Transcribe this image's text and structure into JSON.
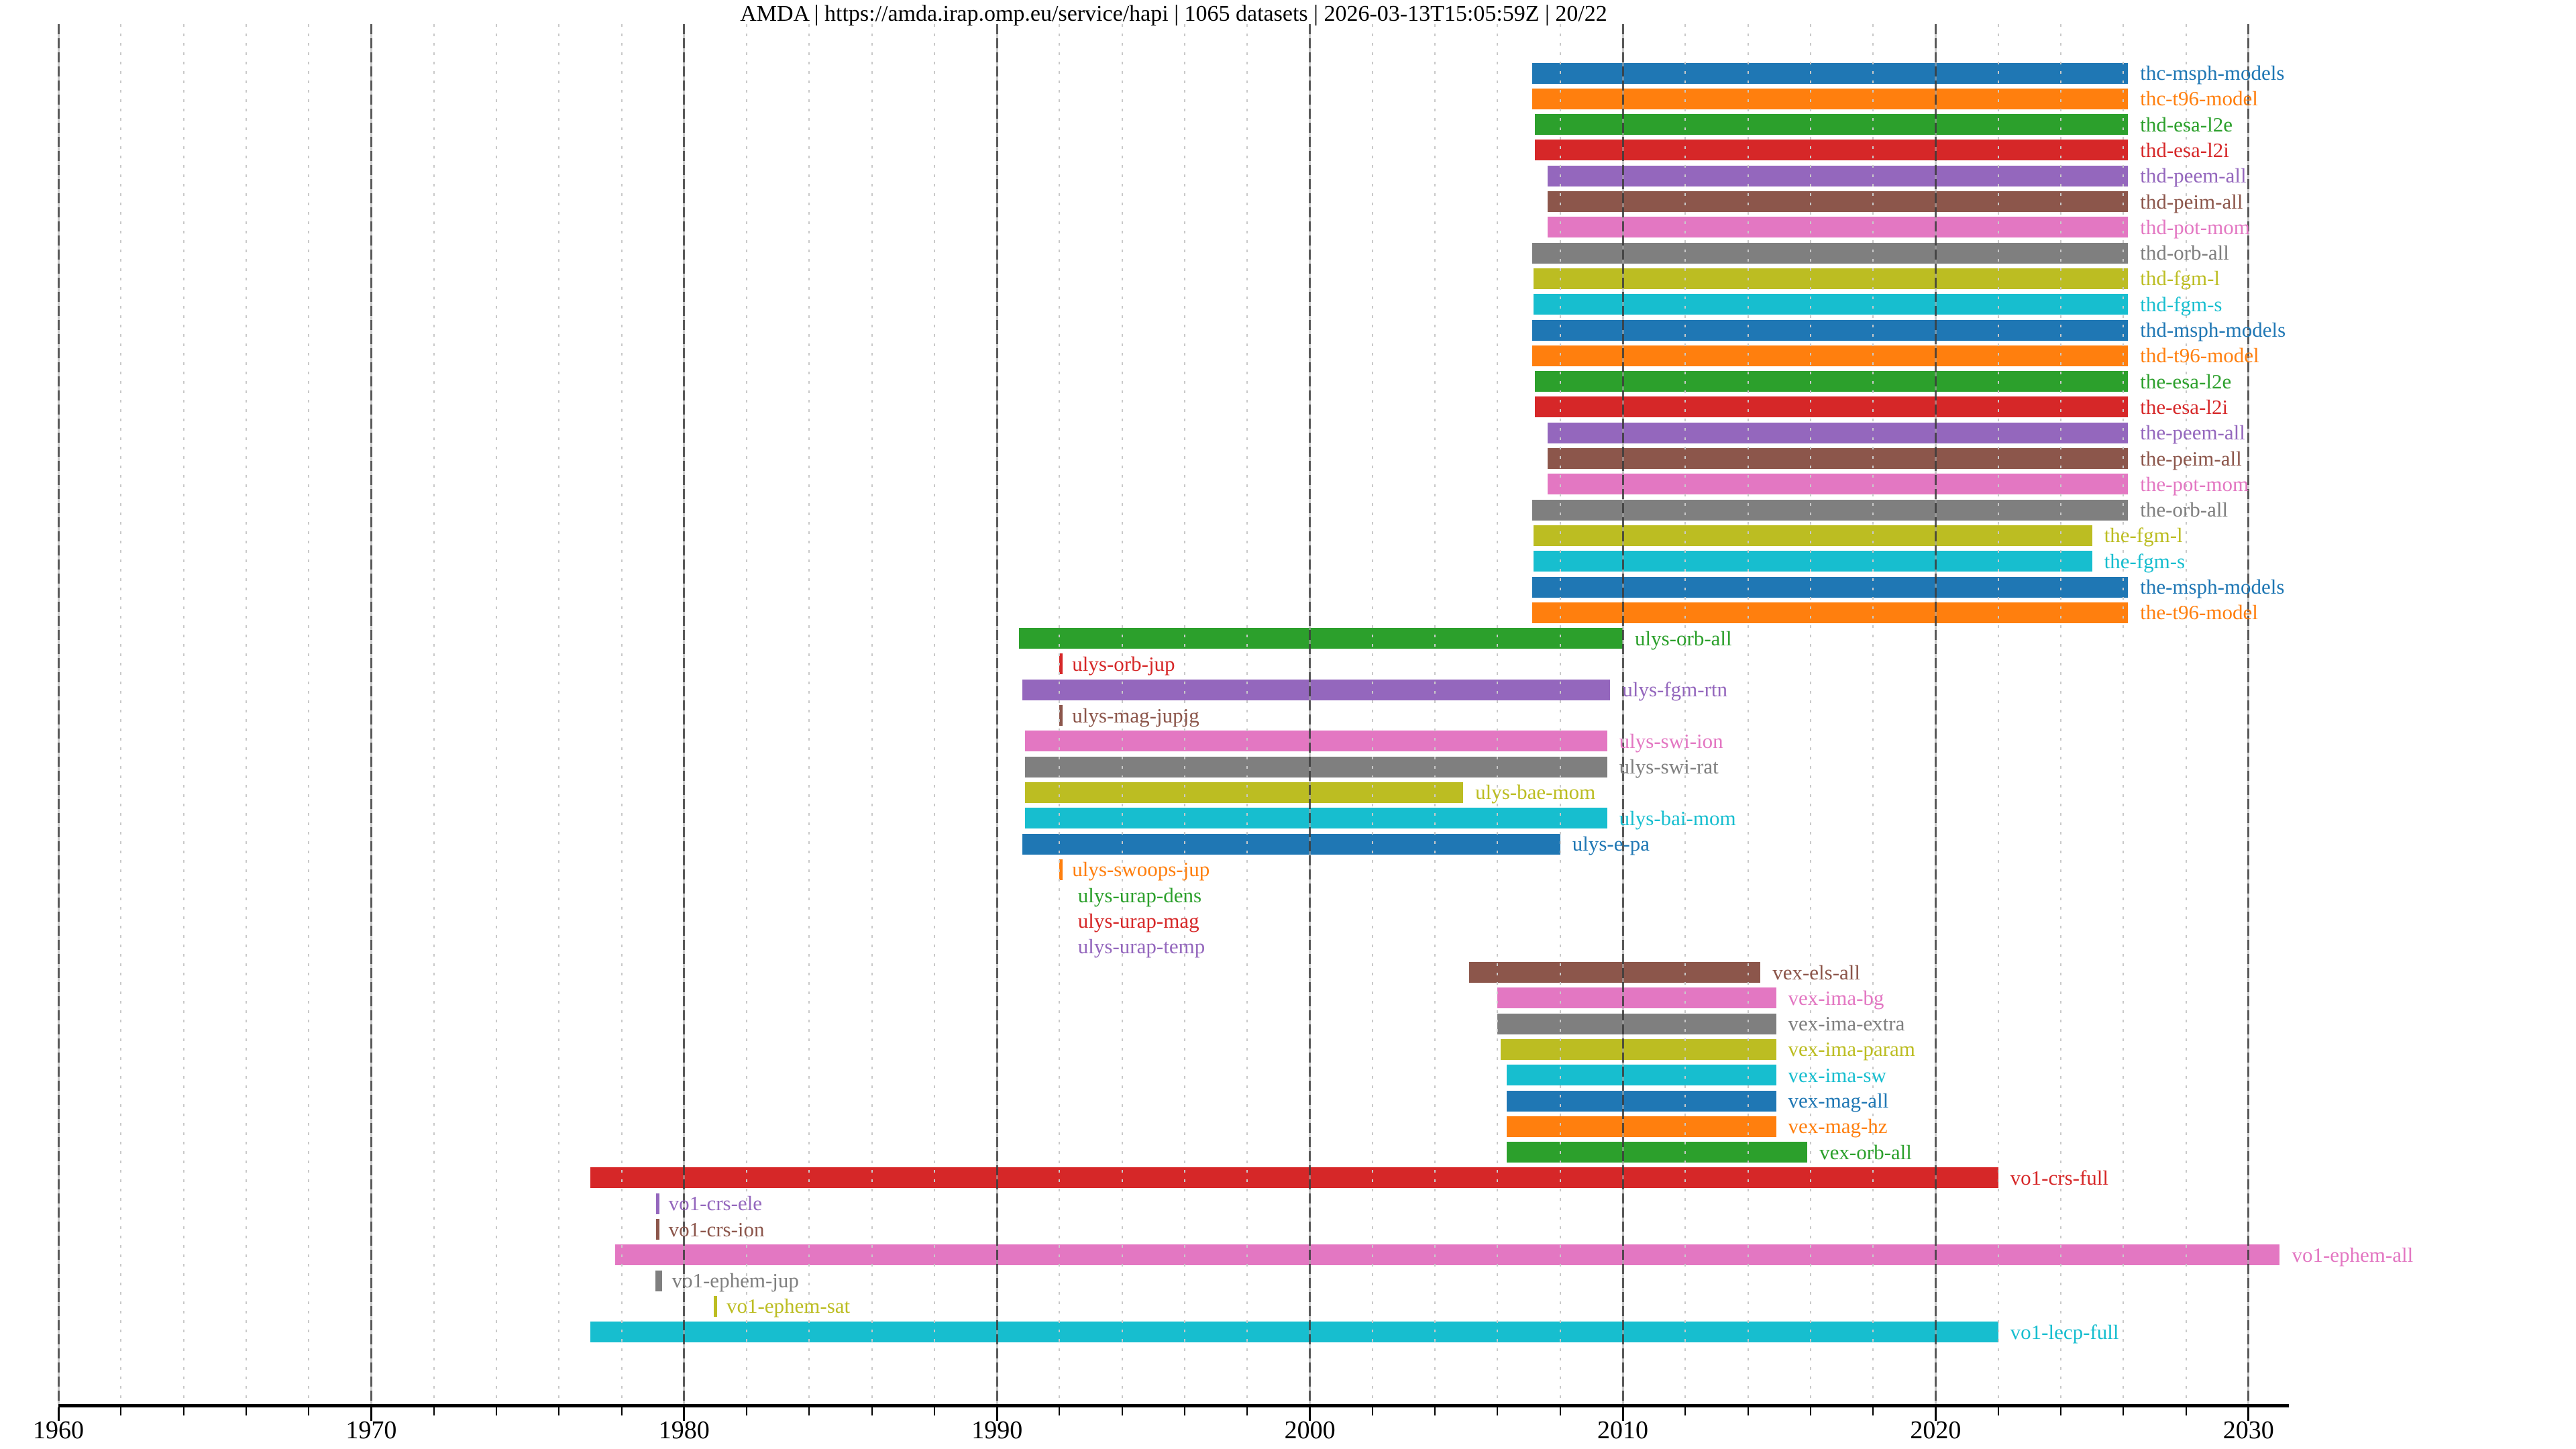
{
  "title": "AMDA | https://amda.irap.omp.eu/service/hapi | 1065 datasets | 2026-03-13T15:05:59Z | 20/22",
  "chart_data": {
    "type": "bar",
    "subtype": "horizontal-timeline-gantt",
    "title": "AMDA | https://amda.irap.omp.eu/service/hapi | 1065 datasets | 2026-03-13T15:05:59Z | 20/22",
    "xlabel": "",
    "ylabel": "",
    "x_axis": {
      "unit": "year",
      "range": [
        1960,
        2031.3
      ],
      "major_ticks": [
        1960,
        1970,
        1980,
        1990,
        2000,
        2010,
        2020,
        2030
      ],
      "minor_tick_step_years": 2,
      "grid": "on"
    },
    "legend_position": "none",
    "palette": {
      "blue": "#1f77b4",
      "orange": "#ff7f0e",
      "green": "#2ca02c",
      "red": "#d62728",
      "purple": "#9467bd",
      "brown": "#8c564b",
      "pink": "#e377c2",
      "gray": "#7f7f7f",
      "olive": "#bcbd22",
      "cyan": "#17becf"
    },
    "rows": [
      {
        "label": "thc-msph-models",
        "color": "blue",
        "kind": "bar",
        "start": 2007.1,
        "end": 2026.15
      },
      {
        "label": "thc-t96-model",
        "color": "orange",
        "kind": "bar",
        "start": 2007.1,
        "end": 2026.15
      },
      {
        "label": "thd-esa-l2e",
        "color": "green",
        "kind": "bar",
        "start": 2007.2,
        "end": 2026.15
      },
      {
        "label": "thd-esa-l2i",
        "color": "red",
        "kind": "bar",
        "start": 2007.2,
        "end": 2026.15
      },
      {
        "label": "thd-peem-all",
        "color": "purple",
        "kind": "bar",
        "start": 2007.6,
        "end": 2026.15
      },
      {
        "label": "thd-peim-all",
        "color": "brown",
        "kind": "bar",
        "start": 2007.6,
        "end": 2026.15
      },
      {
        "label": "thd-pot-mom",
        "color": "pink",
        "kind": "bar",
        "start": 2007.6,
        "end": 2026.15
      },
      {
        "label": "thd-orb-all",
        "color": "gray",
        "kind": "bar",
        "start": 2007.1,
        "end": 2026.15
      },
      {
        "label": "thd-fgm-l",
        "color": "olive",
        "kind": "bar",
        "start": 2007.15,
        "end": 2026.15
      },
      {
        "label": "thd-fgm-s",
        "color": "cyan",
        "kind": "bar",
        "start": 2007.15,
        "end": 2026.15
      },
      {
        "label": "thd-msph-models",
        "color": "blue",
        "kind": "bar",
        "start": 2007.1,
        "end": 2026.15
      },
      {
        "label": "thd-t96-model",
        "color": "orange",
        "kind": "bar",
        "start": 2007.1,
        "end": 2026.15
      },
      {
        "label": "the-esa-l2e",
        "color": "green",
        "kind": "bar",
        "start": 2007.2,
        "end": 2026.15
      },
      {
        "label": "the-esa-l2i",
        "color": "red",
        "kind": "bar",
        "start": 2007.2,
        "end": 2026.15
      },
      {
        "label": "the-peem-all",
        "color": "purple",
        "kind": "bar",
        "start": 2007.6,
        "end": 2026.15
      },
      {
        "label": "the-peim-all",
        "color": "brown",
        "kind": "bar",
        "start": 2007.6,
        "end": 2026.15
      },
      {
        "label": "the-pot-mom",
        "color": "pink",
        "kind": "bar",
        "start": 2007.6,
        "end": 2026.15
      },
      {
        "label": "the-orb-all",
        "color": "gray",
        "kind": "bar",
        "start": 2007.1,
        "end": 2026.15
      },
      {
        "label": "the-fgm-l",
        "color": "olive",
        "kind": "bar",
        "start": 2007.15,
        "end": 2025.0
      },
      {
        "label": "the-fgm-s",
        "color": "cyan",
        "kind": "bar",
        "start": 2007.15,
        "end": 2025.0
      },
      {
        "label": "the-msph-models",
        "color": "blue",
        "kind": "bar",
        "start": 2007.1,
        "end": 2026.15
      },
      {
        "label": "the-t96-model",
        "color": "orange",
        "kind": "bar",
        "start": 2007.1,
        "end": 2026.15
      },
      {
        "label": "ulys-orb-all",
        "color": "green",
        "kind": "bar",
        "start": 1990.7,
        "end": 2010.0
      },
      {
        "label": "ulys-orb-jup",
        "color": "red",
        "kind": "tick",
        "at": 1992.05
      },
      {
        "label": "ulys-fgm-rtn",
        "color": "purple",
        "kind": "bar",
        "start": 1990.8,
        "end": 2009.6
      },
      {
        "label": "ulys-mag-jupjg",
        "color": "brown",
        "kind": "tick",
        "at": 1992.05
      },
      {
        "label": "ulys-swi-ion",
        "color": "pink",
        "kind": "bar",
        "start": 1990.9,
        "end": 2009.5
      },
      {
        "label": "ulys-swi-rat",
        "color": "gray",
        "kind": "bar",
        "start": 1990.9,
        "end": 2009.5
      },
      {
        "label": "ulys-bae-mom",
        "color": "olive",
        "kind": "bar",
        "start": 1990.9,
        "end": 2004.9
      },
      {
        "label": "ulys-bai-mom",
        "color": "cyan",
        "kind": "bar",
        "start": 1990.9,
        "end": 2009.5
      },
      {
        "label": "ulys-e-pa",
        "color": "blue",
        "kind": "bar",
        "start": 1990.8,
        "end": 2008.0
      },
      {
        "label": "ulys-swoops-jup",
        "color": "orange",
        "kind": "tick",
        "at": 1992.05
      },
      {
        "label": "ulys-urap-dens",
        "color": "green",
        "kind": "none",
        "at": 1992.2
      },
      {
        "label": "ulys-urap-mag",
        "color": "red",
        "kind": "none",
        "at": 1992.2
      },
      {
        "label": "ulys-urap-temp",
        "color": "purple",
        "kind": "none",
        "at": 1992.2
      },
      {
        "label": "vex-els-all",
        "color": "brown",
        "kind": "bar",
        "start": 2005.1,
        "end": 2014.4
      },
      {
        "label": "vex-ima-bg",
        "color": "pink",
        "kind": "bar",
        "start": 2006.0,
        "end": 2014.9
      },
      {
        "label": "vex-ima-extra",
        "color": "gray",
        "kind": "bar",
        "start": 2006.0,
        "end": 2014.9
      },
      {
        "label": "vex-ima-param",
        "color": "olive",
        "kind": "bar",
        "start": 2006.1,
        "end": 2014.9
      },
      {
        "label": "vex-ima-sw",
        "color": "cyan",
        "kind": "bar",
        "start": 2006.3,
        "end": 2014.9
      },
      {
        "label": "vex-mag-all",
        "color": "blue",
        "kind": "bar",
        "start": 2006.3,
        "end": 2014.9
      },
      {
        "label": "vex-mag-hz",
        "color": "orange",
        "kind": "bar",
        "start": 2006.3,
        "end": 2014.9
      },
      {
        "label": "vex-orb-all",
        "color": "green",
        "kind": "bar",
        "start": 2006.3,
        "end": 2015.9
      },
      {
        "label": "vo1-crs-full",
        "color": "red",
        "kind": "bar",
        "start": 1977.0,
        "end": 2022.0
      },
      {
        "label": "vo1-crs-ele",
        "color": "purple",
        "kind": "tick",
        "at": 1979.15
      },
      {
        "label": "vo1-crs-ion",
        "color": "brown",
        "kind": "tick",
        "at": 1979.15
      },
      {
        "label": "vo1-ephem-all",
        "color": "pink",
        "kind": "bar",
        "start": 1977.8,
        "end": 2031.0
      },
      {
        "label": "vo1-ephem-jup",
        "color": "gray",
        "kind": "tick",
        "at": 1979.2,
        "tick_w": 10
      },
      {
        "label": "vo1-ephem-sat",
        "color": "olive",
        "kind": "tick",
        "at": 1981.0
      },
      {
        "label": "vo1-lecp-full",
        "color": "cyan",
        "kind": "bar",
        "start": 1977.0,
        "end": 2022.0
      }
    ]
  }
}
